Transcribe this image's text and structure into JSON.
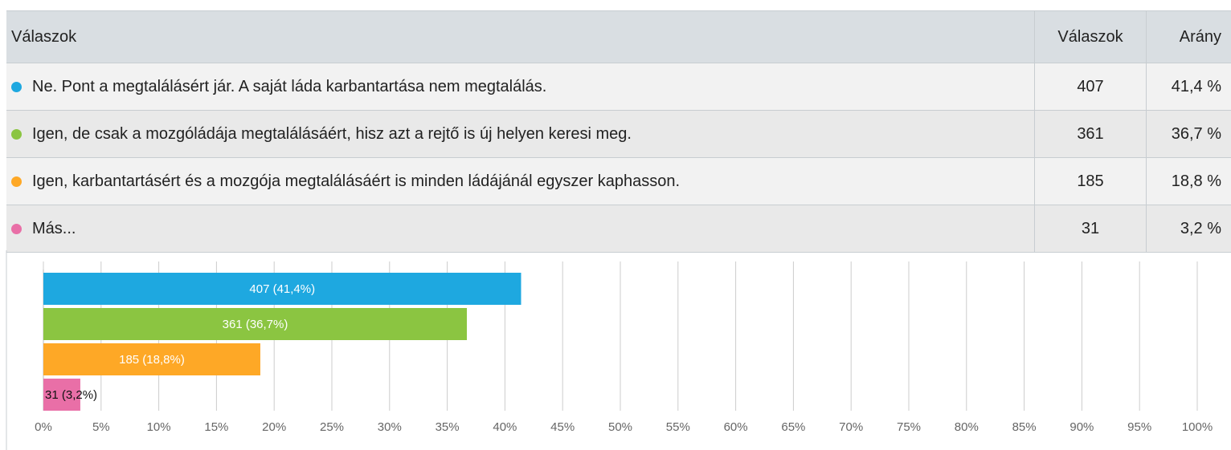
{
  "table": {
    "header": [
      "Válaszok",
      "Válaszok",
      "Arány"
    ],
    "rows": [
      {
        "label": "Ne. Pont a megtalálásért jár. A saját láda karbantartása nem megtalálás.",
        "count": "407",
        "share": "41,4 %"
      },
      {
        "label": "Igen, de csak a mozgóládája megtalálásáért, hisz azt a rejtő is új helyen keresi meg.",
        "count": "361",
        "share": "36,7 %"
      },
      {
        "label": "Igen, karbantartásért és a mozgója megtalálásáért is minden ládájánál egyszer kaphasson.",
        "count": "185",
        "share": "18,8 %"
      },
      {
        "label": "Más...",
        "count": "31",
        "share": "3,2 %"
      }
    ]
  },
  "chart_data": {
    "type": "barh",
    "values": [
      41.4,
      36.7,
      18.8,
      3.2
    ],
    "value_labels": [
      "407 (41,4%)",
      "361 (36,7%)",
      "185 (18,8%)",
      "31 (3,2%)"
    ],
    "colors": [
      "#1ea8e0",
      "#8bc541",
      "#fea826",
      "#e96fa7"
    ],
    "xlim": [
      0,
      100
    ],
    "xticks": [
      {
        "value": 0,
        "label": "0%"
      },
      {
        "value": 5,
        "label": "5%"
      },
      {
        "value": 10,
        "label": "10%"
      },
      {
        "value": 15,
        "label": "15%"
      },
      {
        "value": 20,
        "label": "20%"
      },
      {
        "value": 25,
        "label": "25%"
      },
      {
        "value": 30,
        "label": "30%"
      },
      {
        "value": 35,
        "label": "35%"
      },
      {
        "value": 40,
        "label": "40%"
      },
      {
        "value": 45,
        "label": "45%"
      },
      {
        "value": 50,
        "label": "50%"
      },
      {
        "value": 55,
        "label": "55%"
      },
      {
        "value": 60,
        "label": "60%"
      },
      {
        "value": 65,
        "label": "65%"
      },
      {
        "value": 70,
        "label": "70%"
      },
      {
        "value": 75,
        "label": "75%"
      },
      {
        "value": 80,
        "label": "80%"
      },
      {
        "value": 85,
        "label": "85%"
      },
      {
        "value": 90,
        "label": "90%"
      },
      {
        "value": 95,
        "label": "95%"
      },
      {
        "value": 100,
        "label": "100%"
      }
    ],
    "grid": true
  }
}
